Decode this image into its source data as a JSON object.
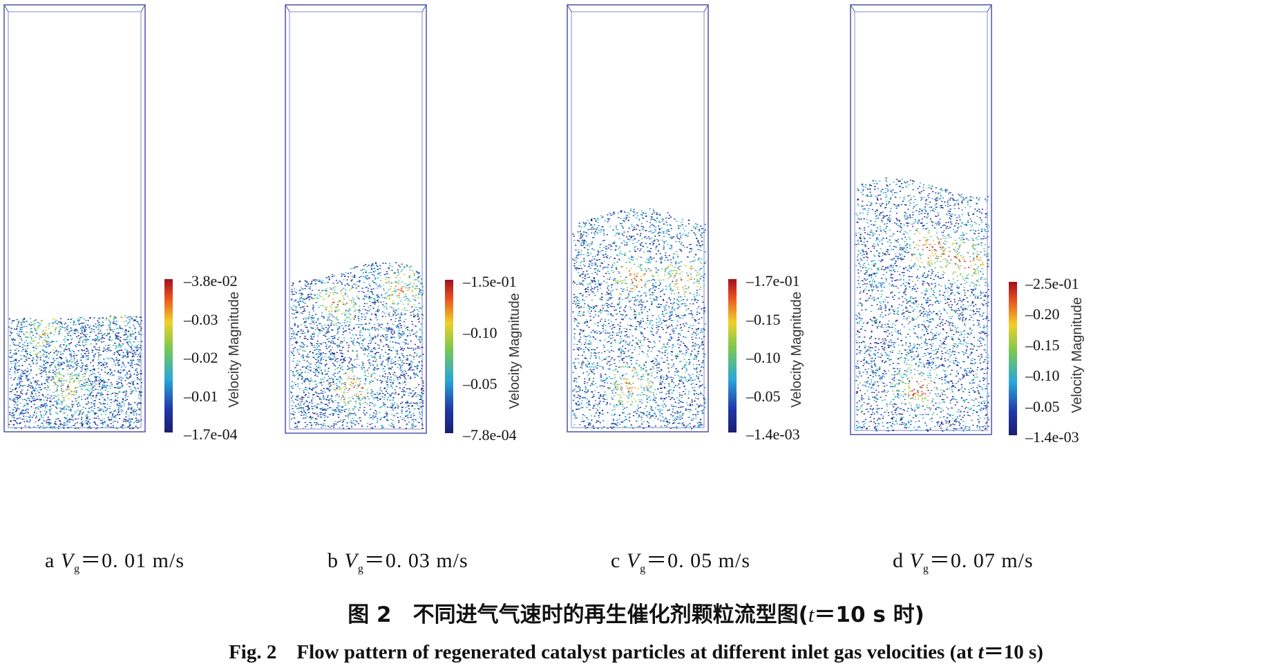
{
  "panels": [
    {
      "label": "a",
      "var": "V",
      "sub": "g",
      "eq": "＝0. 01 m/s",
      "colorbar_ticks": [
        "3.8e-02",
        "0.03",
        "0.02",
        "0.01",
        "1.7e-04"
      ],
      "colorbar_title": "Velocity Magnitude",
      "bed_height_fraction": 0.27
    },
    {
      "label": "b",
      "var": "V",
      "sub": "g",
      "eq": "＝0. 03 m/s",
      "colorbar_ticks": [
        "1.5e-01",
        "0.10",
        "0.05",
        "7.8e-04"
      ],
      "colorbar_title": "Velocity Magnitude",
      "bed_height_fraction": 0.38
    },
    {
      "label": "c",
      "var": "V",
      "sub": "g",
      "eq": "＝0. 05 m/s",
      "colorbar_ticks": [
        "1.7e-01",
        "0.15",
        "0.10",
        "0.05",
        "1.4e-03"
      ],
      "colorbar_title": "Velocity Magnitude",
      "bed_height_fraction": 0.51
    },
    {
      "label": "d",
      "var": "V",
      "sub": "g",
      "eq": "＝0. 07 m/s",
      "colorbar_ticks": [
        "2.5e-01",
        "0.20",
        "0.15",
        "0.10",
        "0.05",
        "1.4e-03"
      ],
      "colorbar_title": "Velocity Magnitude",
      "bed_height_fraction": 0.59
    }
  ],
  "caption_cn": {
    "prefix": "图 2　不同进气气速时的再生催化剂颗粒流型图(",
    "t": "t",
    "suffix": "＝10 s 时)"
  },
  "caption_en": {
    "prefix": "Fig. 2　Flow pattern of regenerated catalyst particles at different inlet gas velocities (at ",
    "t": "t",
    "suffix": "＝10 s)"
  },
  "colors": {
    "container": "#4a52a8",
    "low": "#1a2a8c",
    "high": "#c01818"
  }
}
